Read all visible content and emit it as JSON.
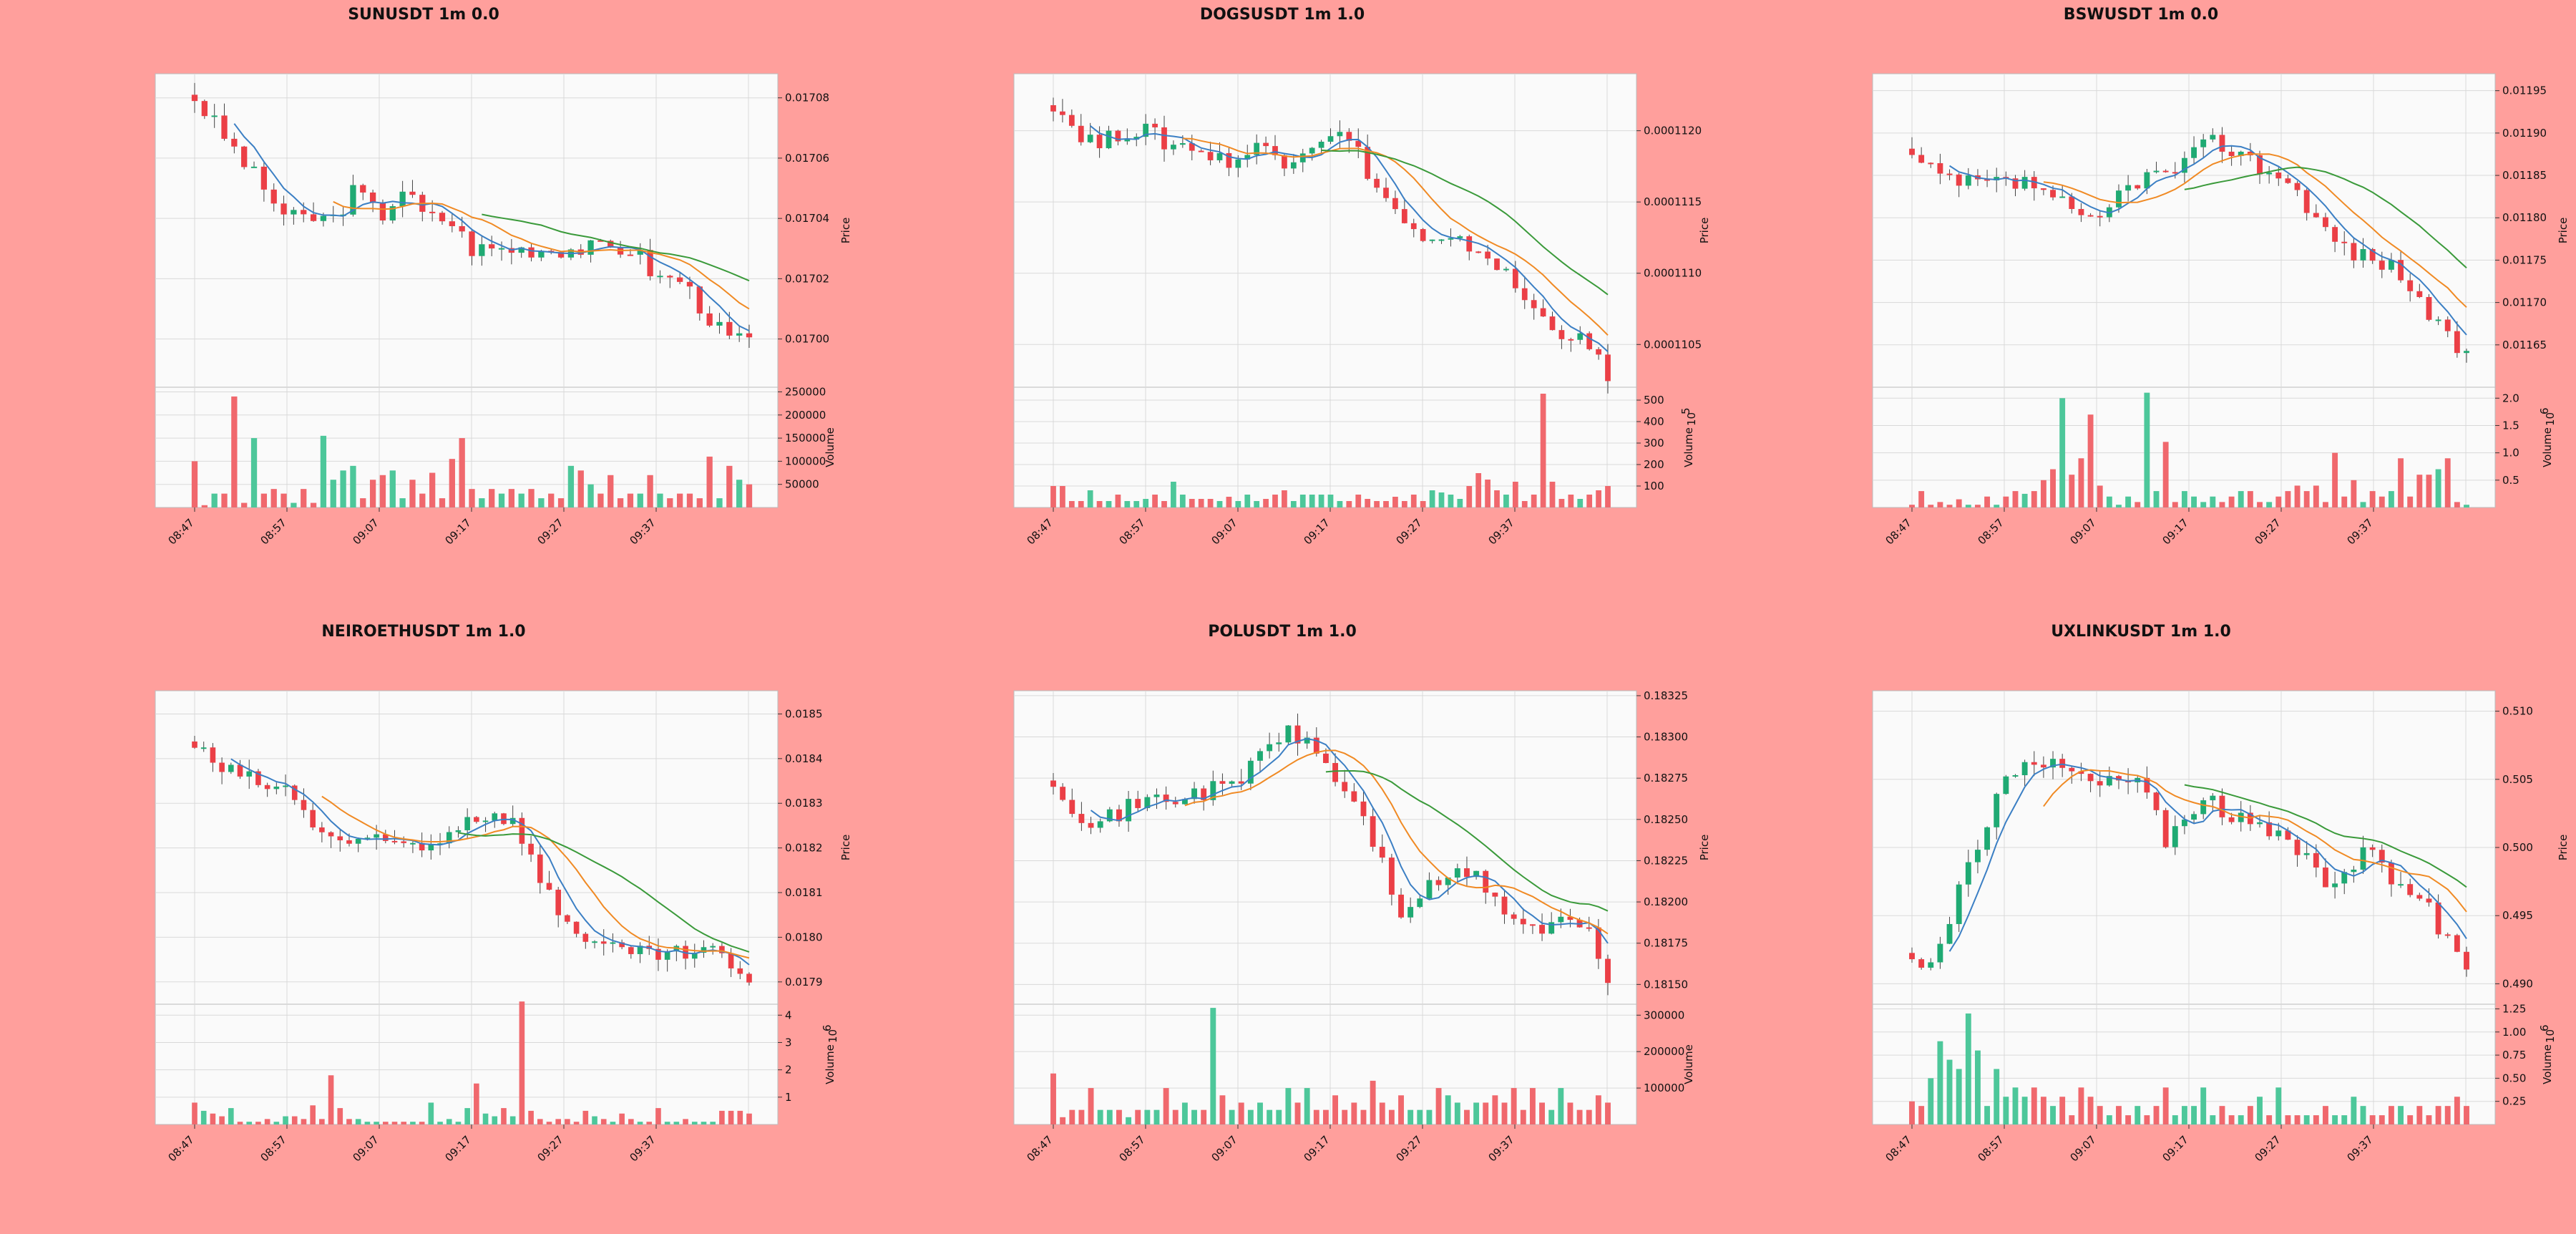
{
  "palette": {
    "background": "#ff9f9c",
    "panel": "#fafafa",
    "grid": "#d9d9d9",
    "up": "#1faa73",
    "down": "#eb3f46",
    "up_vol": "#4dc79a",
    "down_vol": "#f0686d",
    "ma_short": "#3b7fc4",
    "ma_mid": "#f08a24",
    "ma_long": "#3a9a3a"
  },
  "chart_data": [
    {
      "type": "candlestick",
      "title": "SUNUSDT 1m 0.0",
      "ylabel": "Price",
      "vlabel": "Volume",
      "vexp": "",
      "x_ticks": [
        "08:47",
        "08:57",
        "09:07",
        "09:17",
        "09:27",
        "09:37"
      ],
      "price_ticks": [
        0.017,
        0.01702,
        0.01704,
        0.01706,
        0.01708
      ],
      "price_tick_labels": [
        "0.01700",
        "0.01702",
        "0.01704",
        "0.01706",
        "0.01708"
      ],
      "vol_ticks": [
        50000,
        100000,
        150000,
        200000,
        250000
      ],
      "vol_tick_labels": [
        "50000",
        "100000",
        "150000",
        "200000",
        "250000"
      ],
      "ylim": [
        0.016984,
        0.017088
      ],
      "vlim": [
        0,
        260000
      ],
      "price_path": [
        0.01708,
        0.01707,
        0.01706,
        0.01705,
        0.01704,
        0.01704,
        0.01704,
        0.01705,
        0.01704,
        0.01705,
        0.01704,
        0.01704,
        0.01703,
        0.01703,
        0.01703,
        0.01703,
        0.01703,
        0.01703,
        0.01703,
        0.01703,
        0.01702,
        0.01702,
        0.01701,
        0.017,
        0.017
      ],
      "volumes": [
        100000,
        5000,
        30000,
        30000,
        240000,
        10000,
        150000,
        30000,
        40000,
        30000,
        10000,
        40000,
        10000,
        155000,
        60000,
        80000,
        90000,
        20000,
        60000,
        70000,
        80000,
        20000,
        60000,
        30000,
        75000,
        20000,
        105000,
        150000,
        40000,
        20000,
        40000,
        30000,
        40000,
        30000,
        40000,
        20000,
        30000,
        20000,
        90000,
        80000,
        50000,
        30000,
        70000,
        20000,
        30000,
        30000,
        70000,
        30000,
        20000,
        30000,
        30000,
        20000,
        110000,
        20000,
        90000,
        60000,
        50000
      ],
      "volume_total": 57
    },
    {
      "type": "candlestick",
      "title": "DOGSUSDT 1m 1.0",
      "ylabel": "Price",
      "vlabel": "Volume",
      "vexp": "1e5",
      "x_ticks": [
        "08:47",
        "08:57",
        "09:07",
        "09:17",
        "09:27",
        "09:37"
      ],
      "price_ticks": [
        0.0001105,
        0.000111,
        0.0001115,
        0.000112
      ],
      "price_tick_labels": [
        "0.0001105",
        "0.0001110",
        "0.0001115",
        "0.0001120"
      ],
      "vol_ticks": [
        100,
        200,
        300,
        400,
        500
      ],
      "vol_tick_labels": [
        "100",
        "200",
        "300",
        "400",
        "500"
      ],
      "ylim": [
        0.0001102,
        0.0001124
      ],
      "vlim": [
        0,
        560
      ],
      "price_path": [
        0.0001122,
        0.000112,
        0.0001119,
        0.000112,
        0.000112,
        0.0001119,
        0.0001119,
        0.0001118,
        0.0001118,
        0.0001119,
        0.0001118,
        0.0001119,
        0.000112,
        0.0001119,
        0.0001116,
        0.0001114,
        0.0001112,
        0.0001112,
        0.0001112,
        0.0001111,
        0.0001109,
        0.0001107,
        0.0001106,
        0.0001105,
        0.0001103
      ],
      "volumes": [
        100,
        100,
        30,
        30,
        80,
        30,
        30,
        60,
        30,
        30,
        40,
        60,
        30,
        120,
        60,
        40,
        40,
        40,
        30,
        50,
        30,
        60,
        30,
        40,
        60,
        80,
        30,
        60,
        60,
        60,
        60,
        30,
        30,
        60,
        40,
        30,
        30,
        50,
        30,
        60,
        30,
        80,
        70,
        60,
        40,
        100,
        160,
        130,
        80,
        60,
        120,
        30,
        60,
        530,
        120,
        40,
        60,
        40,
        60,
        80,
        100
      ],
      "volume_total": 61
    },
    {
      "type": "candlestick",
      "title": "BSWUSDT 1m 0.0",
      "ylabel": "Price",
      "vlabel": "Volume",
      "vexp": "1e6",
      "x_ticks": [
        "08:47",
        "08:57",
        "09:07",
        "09:17",
        "09:27",
        "09:37"
      ],
      "price_ticks": [
        0.01165,
        0.0117,
        0.01175,
        0.0118,
        0.01185,
        0.0119,
        0.01195
      ],
      "price_tick_labels": [
        "0.01165",
        "0.01170",
        "0.01175",
        "0.01180",
        "0.01185",
        "0.01190",
        "0.01195"
      ],
      "vol_ticks": [
        0.5,
        1.0,
        1.5,
        2.0
      ],
      "vol_tick_labels": [
        "0.5",
        "1.0",
        "1.5",
        "2.0"
      ],
      "ylim": [
        0.0116,
        0.01197
      ],
      "vlim": [
        0,
        2.2
      ],
      "price_path": [
        0.01187,
        0.01185,
        0.01184,
        0.01184,
        0.01184,
        0.01184,
        0.01183,
        0.0118,
        0.01179,
        0.01183,
        0.01185,
        0.01185,
        0.01187,
        0.01189,
        0.01188,
        0.01186,
        0.01185,
        0.01182,
        0.01178,
        0.01176,
        0.01175,
        0.01174,
        0.0117,
        0.01166,
        0.01164
      ],
      "volumes": [
        0.05,
        0.3,
        0.05,
        0.1,
        0.05,
        0.15,
        0.05,
        0.05,
        0.2,
        0.05,
        0.2,
        0.3,
        0.25,
        0.3,
        0.5,
        0.7,
        2.0,
        0.6,
        0.9,
        1.7,
        0.4,
        0.2,
        0.05,
        0.2,
        0.1,
        2.1,
        0.3,
        1.2,
        0.1,
        0.3,
        0.2,
        0.1,
        0.2,
        0.1,
        0.2,
        0.3,
        0.3,
        0.1,
        0.1,
        0.2,
        0.3,
        0.4,
        0.3,
        0.4,
        0.1,
        1.0,
        0.2,
        0.5,
        0.1,
        0.3,
        0.2,
        0.3,
        0.9,
        0.2,
        0.6,
        0.6,
        0.7,
        0.9,
        0.1,
        0.05
      ],
      "volume_total": 60
    },
    {
      "type": "candlestick",
      "title": "NEIROETHUSDT 1m 1.0",
      "ylabel": "Price",
      "vlabel": "Volume",
      "vexp": "1e6",
      "x_ticks": [
        "08:47",
        "08:57",
        "09:07",
        "09:17",
        "09:27",
        "09:37"
      ],
      "price_ticks": [
        0.0179,
        0.018,
        0.0181,
        0.0182,
        0.0183,
        0.0184,
        0.0185
      ],
      "price_tick_labels": [
        "0.0179",
        "0.0180",
        "0.0181",
        "0.0182",
        "0.0183",
        "0.0184",
        "0.0185"
      ],
      "vol_ticks": [
        1,
        2,
        3,
        4
      ],
      "vol_tick_labels": [
        "1",
        "2",
        "3",
        "4"
      ],
      "ylim": [
        0.01785,
        0.018552
      ],
      "vlim": [
        0,
        4.4
      ],
      "price_path": [
        0.01843,
        0.01838,
        0.01836,
        0.01834,
        0.01833,
        0.01826,
        0.01822,
        0.01821,
        0.01821,
        0.01821,
        0.0182,
        0.01824,
        0.01827,
        0.01828,
        0.01825,
        0.01812,
        0.01804,
        0.018,
        0.01797,
        0.01796,
        0.01796,
        0.01796,
        0.01797,
        0.01795,
        0.01788
      ],
      "volumes": [
        0.8,
        0.5,
        0.4,
        0.3,
        0.6,
        0.1,
        0.1,
        0.1,
        0.2,
        0.1,
        0.3,
        0.3,
        0.2,
        0.7,
        0.2,
        1.8,
        0.6,
        0.2,
        0.2,
        0.1,
        0.1,
        0.1,
        0.1,
        0.1,
        0.1,
        0.1,
        0.8,
        0.1,
        0.2,
        0.1,
        0.6,
        1.5,
        0.4,
        0.3,
        0.6,
        0.3,
        4.5,
        0.5,
        0.2,
        0.1,
        0.2,
        0.2,
        0.1,
        0.5,
        0.3,
        0.2,
        0.1,
        0.4,
        0.2,
        0.1,
        0.1,
        0.6,
        0.1,
        0.1,
        0.2,
        0.1,
        0.1,
        0.1,
        0.5,
        0.5,
        0.5,
        0.4
      ],
      "volume_total": 62
    },
    {
      "type": "candlestick",
      "title": "POLUSDT 1m 1.0",
      "ylabel": "Price",
      "vlabel": "Volume",
      "vexp": "",
      "x_ticks": [
        "08:47",
        "08:57",
        "09:07",
        "09:17",
        "09:27",
        "09:37"
      ],
      "price_ticks": [
        0.1815,
        0.18175,
        0.182,
        0.18225,
        0.1825,
        0.18275,
        0.183,
        0.18325
      ],
      "price_tick_labels": [
        "0.18150",
        "0.18175",
        "0.18200",
        "0.18225",
        "0.18250",
        "0.18275",
        "0.18300",
        "0.18325"
      ],
      "vol_ticks": [
        100000,
        200000,
        300000
      ],
      "vol_tick_labels": [
        "100000",
        "200000",
        "300000"
      ],
      "ylim": [
        0.18138,
        0.18328
      ],
      "vlim": [
        0,
        330000
      ],
      "price_path": [
        0.18275,
        0.18255,
        0.18248,
        0.18255,
        0.18262,
        0.18262,
        0.18266,
        0.18268,
        0.18272,
        0.18292,
        0.18302,
        0.18298,
        0.18278,
        0.18262,
        0.18232,
        0.18193,
        0.18205,
        0.18215,
        0.18218,
        0.18205,
        0.18188,
        0.18183,
        0.18188,
        0.18185,
        0.18155
      ],
      "volumes": [
        140000,
        20000,
        40000,
        40000,
        100000,
        40000,
        40000,
        40000,
        20000,
        40000,
        40000,
        40000,
        100000,
        40000,
        60000,
        40000,
        40000,
        320000,
        80000,
        40000,
        60000,
        40000,
        60000,
        40000,
        40000,
        100000,
        60000,
        100000,
        40000,
        40000,
        80000,
        40000,
        60000,
        40000,
        120000,
        60000,
        40000,
        80000,
        40000,
        40000,
        40000,
        100000,
        80000,
        60000,
        40000,
        60000,
        60000,
        80000,
        60000,
        100000,
        40000,
        100000,
        60000,
        40000,
        100000,
        60000,
        40000,
        40000,
        80000,
        60000
      ],
      "volume_total": 60
    },
    {
      "type": "candlestick",
      "title": "UXLINKUSDT 1m 1.0",
      "ylabel": "Price",
      "vlabel": "Volume",
      "vexp": "1e6",
      "x_ticks": [
        "08:47",
        "08:57",
        "09:07",
        "09:17",
        "09:27",
        "09:37"
      ],
      "price_ticks": [
        0.49,
        0.495,
        0.5,
        0.505,
        0.51
      ],
      "price_tick_labels": [
        "0.490",
        "0.495",
        "0.500",
        "0.505",
        "0.510"
      ],
      "vol_ticks": [
        0.25,
        0.5,
        0.75,
        1.0,
        1.25
      ],
      "vol_tick_labels": [
        "0.25",
        "0.50",
        "0.75",
        "1.00",
        "1.25"
      ],
      "ylim": [
        0.4885,
        0.5115
      ],
      "vlim": [
        0,
        1.3
      ],
      "price_path": [
        0.4915,
        0.4915,
        0.497,
        0.5,
        0.505,
        0.507,
        0.506,
        0.5055,
        0.5045,
        0.505,
        0.5045,
        0.5005,
        0.503,
        0.5035,
        0.502,
        0.5015,
        0.5005,
        0.4995,
        0.4975,
        0.4985,
        0.5005,
        0.497,
        0.4965,
        0.4935,
        0.4905
      ],
      "volumes": [
        0.25,
        0.2,
        0.5,
        0.9,
        0.7,
        0.6,
        1.2,
        0.8,
        0.2,
        0.6,
        0.3,
        0.4,
        0.3,
        0.4,
        0.3,
        0.2,
        0.3,
        0.1,
        0.4,
        0.3,
        0.2,
        0.1,
        0.2,
        0.1,
        0.2,
        0.1,
        0.2,
        0.4,
        0.1,
        0.2,
        0.2,
        0.4,
        0.1,
        0.2,
        0.1,
        0.1,
        0.2,
        0.3,
        0.1,
        0.4,
        0.1,
        0.1,
        0.1,
        0.1,
        0.2,
        0.1,
        0.1,
        0.3,
        0.2,
        0.1,
        0.1,
        0.2,
        0.2,
        0.1,
        0.2,
        0.1,
        0.2,
        0.2,
        0.3,
        0.2
      ],
      "volume_total": 60
    }
  ]
}
